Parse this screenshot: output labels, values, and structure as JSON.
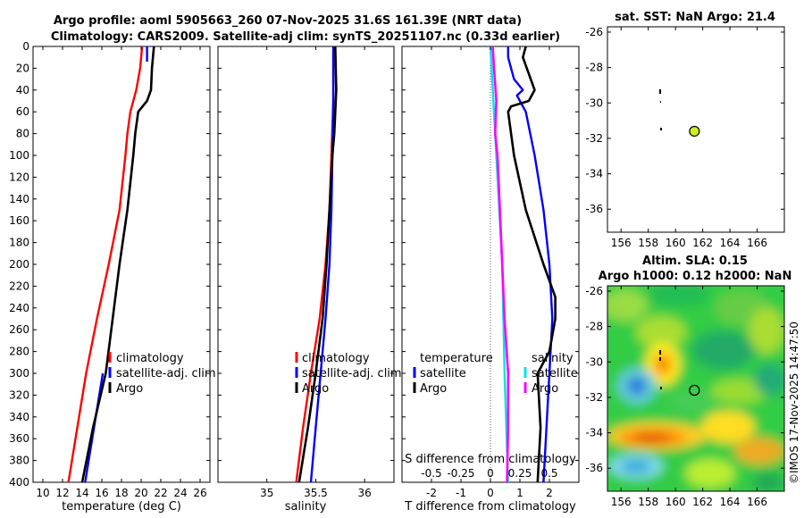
{
  "titles": {
    "line1": "Argo profile: aoml 5905663_260 07-Nov-2025 31.6S 161.39E (NRT data)",
    "line2": "Climatology: CARS2009. Satellite-adj clim: synTS_20251107.nc (0.33d earlier)",
    "sst_map": "sat. SST: NaN Argo: 21.4",
    "sla_line1": "Altim. SLA: 0.15",
    "sla_line2": "Argo h1000: 0.12 h2000: NaN",
    "credit": "©IMOS 17-Nov-2025 14:47:50"
  },
  "colors": {
    "climatology": "#ff0000",
    "satellite": "#0000ff",
    "argo": "#000000",
    "salinity_diff": "#ff00ff",
    "temp_diff": "#00e5e5",
    "land_marker": "#ccee22"
  },
  "depth_ticks": [
    "0",
    "20",
    "40",
    "60",
    "80",
    "100",
    "120",
    "140",
    "160",
    "180",
    "200",
    "220",
    "240",
    "260",
    "280",
    "300",
    "320",
    "340",
    "360",
    "380",
    "400"
  ],
  "chart_data": [
    {
      "type": "line",
      "name": "temperature",
      "xlabel": "temperature (deg C)",
      "ylabel": "",
      "xlim": [
        9,
        27
      ],
      "ylim": [
        400,
        0
      ],
      "xticks": [
        "10",
        "12",
        "14",
        "16",
        "18",
        "20",
        "22",
        "24",
        "26"
      ],
      "legend": [
        "climatology",
        "satellite-adj. clim",
        "Argo"
      ],
      "series": [
        {
          "name": "climatology",
          "depth": [
            0,
            20,
            40,
            60,
            80,
            100,
            150,
            200,
            250,
            300,
            350,
            400
          ],
          "values": [
            20.1,
            19.9,
            19.5,
            18.9,
            18.6,
            18.4,
            17.8,
            16.7,
            15.5,
            14.4,
            13.5,
            12.6
          ]
        },
        {
          "name": "satellite-adj. clim",
          "depth": [
            0,
            10,
            14
          ],
          "values": [
            20.6,
            20.6,
            20.6
          ]
        },
        {
          "name": "satellite-adj. clim",
          "depth": [
            300,
            350,
            400
          ],
          "values": [
            16.1,
            15.2,
            14.3
          ]
        },
        {
          "name": "Argo",
          "depth": [
            0,
            20,
            40,
            50,
            60,
            80,
            100,
            150,
            200,
            250,
            300,
            350,
            400
          ],
          "values": [
            21.3,
            21.1,
            21.0,
            20.6,
            19.7,
            19.4,
            19.2,
            18.6,
            17.8,
            17.1,
            16.4,
            15.1,
            14.0
          ]
        }
      ]
    },
    {
      "type": "line",
      "name": "salinity",
      "xlabel": "salinity",
      "xlim": [
        34.5,
        36.3
      ],
      "ylim": [
        400,
        0
      ],
      "xticks": [
        "35",
        "35.5",
        "36"
      ],
      "legend": [
        "climatology",
        "satellite-adj. clim",
        "Argo"
      ],
      "series": [
        {
          "name": "climatology",
          "depth": [
            0,
            50,
            100,
            150,
            200,
            250,
            300,
            350,
            400
          ],
          "values": [
            35.68,
            35.68,
            35.66,
            35.64,
            35.6,
            35.54,
            35.45,
            35.37,
            35.3
          ]
        },
        {
          "name": "satellite-adj. clim",
          "depth": [
            0,
            50,
            100,
            150,
            200,
            250,
            300,
            350,
            400
          ],
          "values": [
            35.68,
            35.68,
            35.67,
            35.66,
            35.64,
            35.6,
            35.55,
            35.5,
            35.45
          ]
        },
        {
          "name": "Argo",
          "depth": [
            0,
            40,
            60,
            80,
            100,
            150,
            200,
            250,
            300,
            350,
            400
          ],
          "values": [
            35.7,
            35.71,
            35.7,
            35.69,
            35.67,
            35.64,
            35.61,
            35.57,
            35.5,
            35.42,
            35.33
          ]
        }
      ]
    },
    {
      "type": "line",
      "name": "differences",
      "xlabel": "T difference from climatology",
      "xlabel_top": "S difference from climatology",
      "xlim": [
        -3,
        3
      ],
      "ylim": [
        400,
        0
      ],
      "xticks": [
        "-2",
        "-1",
        "0",
        "1",
        "2"
      ],
      "xticks_top": [
        "-0.5",
        "-0.25",
        "0",
        "0.25",
        "0.5"
      ],
      "legend_temperature": [
        "temperature",
        "satellite",
        "Argo"
      ],
      "legend_salinity": [
        "salinity",
        "satellite",
        "Argo"
      ],
      "series": [
        {
          "name": "T satellite",
          "depth": [
            0,
            10,
            30,
            40,
            45,
            60,
            100,
            150,
            200,
            250,
            300,
            350,
            400
          ],
          "values": [
            0.6,
            0.6,
            0.8,
            1.1,
            0.9,
            1.2,
            1.5,
            1.8,
            2.0,
            2.1,
            2.0,
            1.9,
            1.8
          ]
        },
        {
          "name": "T Argo",
          "depth": [
            0,
            10,
            40,
            50,
            55,
            60,
            80,
            100,
            150,
            200,
            230,
            250,
            280,
            300,
            350,
            400
          ],
          "values": [
            1.2,
            1.1,
            1.5,
            1.3,
            0.7,
            0.6,
            0.7,
            0.8,
            1.2,
            1.8,
            2.2,
            2.2,
            2.0,
            1.6,
            1.7,
            1.6
          ]
        },
        {
          "name": "S satellite",
          "depth": [
            0,
            100,
            200,
            300,
            400
          ],
          "values": [
            0,
            0.05,
            0.1,
            0.12,
            0.15
          ]
        },
        {
          "name": "S Argo",
          "depth": [
            0,
            20,
            50,
            80,
            100,
            150,
            200,
            250,
            300,
            350,
            400
          ],
          "values": [
            0.02,
            0.03,
            0.05,
            0.04,
            0.06,
            0.08,
            0.1,
            0.12,
            0.15,
            0.15,
            0.14
          ]
        }
      ]
    },
    {
      "type": "scatter",
      "name": "sst_map",
      "xlim": [
        155,
        168
      ],
      "ylim": [
        -37.3,
        -25.7
      ],
      "xticks": [
        "156",
        "158",
        "160",
        "162",
        "164",
        "166"
      ],
      "yticks": [
        "-26",
        "-28",
        "-30",
        "-32",
        "-34",
        "-36"
      ],
      "points": [
        {
          "lon": 161.39,
          "lat": -31.6,
          "label": "Argo"
        }
      ]
    },
    {
      "type": "heatmap",
      "name": "sla_map",
      "xlim": [
        155,
        168
      ],
      "ylim": [
        -37.3,
        -25.7
      ],
      "xticks": [
        "156",
        "158",
        "160",
        "162",
        "164",
        "166"
      ],
      "yticks": [
        "-26",
        "-28",
        "-30",
        "-32",
        "-34",
        "-36"
      ],
      "points": [
        {
          "lon": 161.39,
          "lat": -31.6,
          "label": "Argo"
        }
      ]
    }
  ]
}
